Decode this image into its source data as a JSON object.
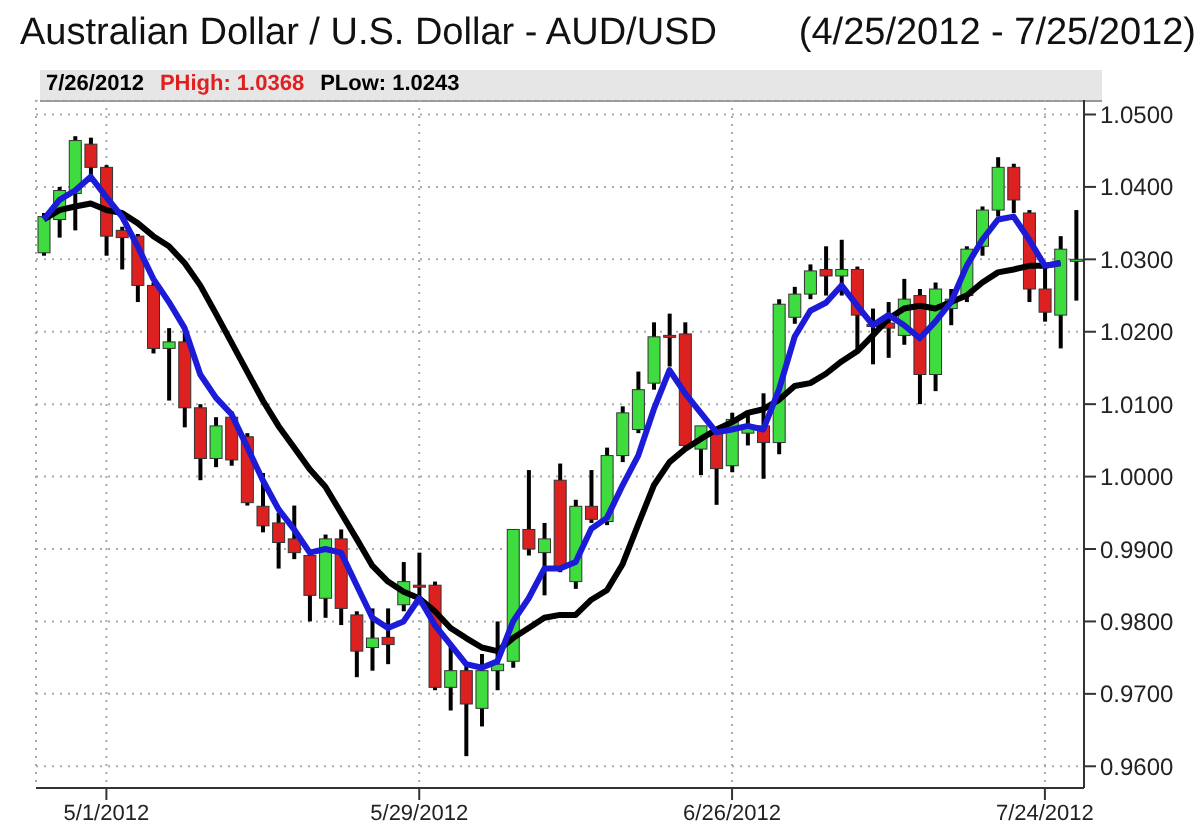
{
  "chart_data": {
    "type": "candlestick",
    "title": "Australian Dollar / U.S. Dollar -  AUD/USD",
    "subtitle": "(4/25/2012 - 7/25/2012)",
    "annotations": [
      "7/26/2012",
      "PHigh: 1.0368",
      "PLow: 1.0243"
    ],
    "categories": [
      null,
      null,
      null,
      null,
      "5/1/2012",
      null,
      null,
      null,
      null,
      null,
      null,
      null,
      null,
      null,
      null,
      null,
      null,
      null,
      null,
      null,
      null,
      null,
      null,
      null,
      "5/29/2012",
      null,
      null,
      null,
      null,
      null,
      null,
      null,
      null,
      null,
      null,
      null,
      null,
      null,
      null,
      null,
      null,
      null,
      null,
      null,
      "6/26/2012",
      null,
      null,
      null,
      null,
      null,
      null,
      null,
      null,
      null,
      null,
      null,
      null,
      null,
      null,
      null,
      null,
      null,
      null,
      null,
      "7/24/2012",
      null,
      null
    ],
    "ohlc": [
      [
        1.0309,
        1.0364,
        1.0305,
        1.0359
      ],
      [
        1.0355,
        1.04,
        1.033,
        1.0395
      ],
      [
        1.0391,
        1.047,
        1.034,
        1.0464
      ],
      [
        1.0459,
        1.0468,
        1.041,
        1.0427
      ],
      [
        1.0427,
        1.043,
        1.0305,
        1.0332
      ],
      [
        1.034,
        1.0345,
        1.0286,
        1.033
      ],
      [
        1.0332,
        1.0335,
        1.0241,
        1.0264
      ],
      [
        1.0264,
        1.0268,
        1.017,
        1.0177
      ],
      [
        1.0177,
        1.0205,
        1.0105,
        1.0186
      ],
      [
        1.0186,
        1.0205,
        1.0068,
        1.0095
      ],
      [
        1.0095,
        1.01,
        0.9995,
        1.0025
      ],
      [
        1.0025,
        1.0082,
        1.0013,
        1.007
      ],
      [
        1.0082,
        1.009,
        1.0015,
        1.0023
      ],
      [
        1.0055,
        1.006,
        0.996,
        0.9964
      ],
      [
        0.9959,
        1.0005,
        0.9923,
        0.9932
      ],
      [
        0.9936,
        0.995,
        0.9873,
        0.9909
      ],
      [
        0.9914,
        0.996,
        0.9886,
        0.9895
      ],
      [
        0.9891,
        0.9895,
        0.98,
        0.9836
      ],
      [
        0.9832,
        0.992,
        0.9805,
        0.9914
      ],
      [
        0.9914,
        0.9927,
        0.9795,
        0.9818
      ],
      [
        0.9809,
        0.9814,
        0.9723,
        0.9759
      ],
      [
        0.9764,
        0.9818,
        0.9732,
        0.9777
      ],
      [
        0.9778,
        0.9818,
        0.9741,
        0.9768
      ],
      [
        0.9823,
        0.9882,
        0.9814,
        0.9855
      ],
      [
        0.985,
        0.9895,
        0.9832,
        0.9848
      ],
      [
        0.985,
        0.9855,
        0.9705,
        0.9709
      ],
      [
        0.9709,
        0.9768,
        0.9677,
        0.9732
      ],
      [
        0.9732,
        0.9741,
        0.9614,
        0.9686
      ],
      [
        0.968,
        0.9755,
        0.9655,
        0.9732
      ],
      [
        0.9732,
        0.98,
        0.9705,
        0.9741
      ],
      [
        0.9745,
        0.9927,
        0.9736,
        0.9927
      ],
      [
        0.9927,
        1.0009,
        0.9891,
        0.99
      ],
      [
        0.9895,
        0.9936,
        0.9836,
        0.9914
      ],
      [
        0.9995,
        1.0018,
        0.9868,
        0.9873
      ],
      [
        0.9855,
        0.9968,
        0.9845,
        0.9959
      ],
      [
        0.9959,
        1.0009,
        0.9936,
        0.9941
      ],
      [
        0.9938,
        1.004,
        0.9933,
        1.0029
      ],
      [
        1.0029,
        1.0097,
        1.002,
        1.0088
      ],
      [
        1.0065,
        1.0145,
        1.006,
        1.012
      ],
      [
        1.0129,
        1.0213,
        1.012,
        1.0193
      ],
      [
        1.0195,
        1.0225,
        1.0152,
        1.0193
      ],
      [
        1.0197,
        1.0213,
        1.004,
        1.0043
      ],
      [
        1.0038,
        1.007,
        1.0002,
        1.007
      ],
      [
        1.0061,
        1.0061,
        0.9961,
        1.0011
      ],
      [
        1.0015,
        1.0088,
        1.0006,
        1.0079
      ],
      [
        1.006,
        1.0088,
        1.0043,
        1.007
      ],
      [
        1.007,
        1.0115,
        0.9997,
        1.0047
      ],
      [
        1.0047,
        1.0245,
        1.0031,
        1.0238
      ],
      [
        1.022,
        1.0262,
        1.0211,
        1.0252
      ],
      [
        1.0252,
        1.0293,
        1.0245,
        1.0284
      ],
      [
        1.0286,
        1.0318,
        1.025,
        1.0277
      ],
      [
        1.0277,
        1.0327,
        1.025,
        1.0286
      ],
      [
        1.0286,
        1.029,
        1.0175,
        1.0223
      ],
      [
        1.021,
        1.0232,
        1.0155,
        1.0208
      ],
      [
        1.0212,
        1.0241,
        1.0164,
        1.0205
      ],
      [
        1.0195,
        1.0273,
        1.0182,
        1.0245
      ],
      [
        1.025,
        1.0259,
        1.01,
        1.0141
      ],
      [
        1.0141,
        1.0268,
        1.0118,
        1.0259
      ],
      [
        1.0232,
        1.0259,
        1.0209,
        1.0245
      ],
      [
        1.025,
        1.0318,
        1.0241,
        1.0314
      ],
      [
        1.0318,
        1.0373,
        1.0305,
        1.0368
      ],
      [
        1.0368,
        1.0441,
        1.0359,
        1.0427
      ],
      [
        1.0427,
        1.0432,
        1.0364,
        1.0382
      ],
      [
        1.0364,
        1.0368,
        1.0241,
        1.0259
      ],
      [
        1.0259,
        1.0291,
        1.0214,
        1.0227
      ],
      [
        1.0223,
        1.0332,
        1.0177,
        1.0314
      ],
      [
        1.03,
        1.0368,
        1.0243,
        1.03
      ]
    ],
    "colors": [
      "#3fdc3f",
      "#3fdc3f",
      "#3fdc3f",
      "#dd2020",
      "#dd2020",
      "#dd2020",
      "#dd2020",
      "#dd2020",
      "#3fdc3f",
      "#dd2020",
      "#dd2020",
      "#3fdc3f",
      "#dd2020",
      "#dd2020",
      "#dd2020",
      "#dd2020",
      "#dd2020",
      "#dd2020",
      "#3fdc3f",
      "#dd2020",
      "#dd2020",
      "#3fdc3f",
      "#dd2020",
      "#3fdc3f",
      "#dd2020",
      "#dd2020",
      "#3fdc3f",
      "#dd2020",
      "#3fdc3f",
      "#3fdc3f",
      "#3fdc3f",
      "#dd2020",
      "#3fdc3f",
      "#dd2020",
      "#3fdc3f",
      "#dd2020",
      "#3fdc3f",
      "#3fdc3f",
      "#3fdc3f",
      "#3fdc3f",
      "#dd2020",
      "#dd2020",
      "#3fdc3f",
      "#dd2020",
      "#3fdc3f",
      "#3fdc3f",
      "#dd2020",
      "#3fdc3f",
      "#3fdc3f",
      "#3fdc3f",
      "#dd2020",
      "#3fdc3f",
      "#dd2020",
      "#dd2020",
      "#dd2020",
      "#3fdc3f",
      "#dd2020",
      "#3fdc3f",
      "#3fdc3f",
      "#3fdc3f",
      "#3fdc3f",
      "#3fdc3f",
      "#dd2020",
      "#dd2020",
      "#dd2020",
      "#3fdc3f",
      "#3fdc3f"
    ],
    "series": [
      {
        "type": "line",
        "color": "#000000",
        "values": [
          1.0355,
          1.0368,
          1.0373,
          1.0377,
          1.0368,
          1.0364,
          1.035,
          1.0332,
          1.0318,
          1.0295,
          1.0264,
          1.0225,
          1.0185,
          1.0145,
          1.0105,
          1.007,
          1.004,
          1.001,
          0.9986,
          0.995,
          0.9914,
          0.9877,
          0.9855,
          0.9841,
          0.9832,
          0.9814,
          0.9791,
          0.9777,
          0.9764,
          0.9759,
          0.9777,
          0.9791,
          0.9805,
          0.9809,
          0.9809,
          0.983,
          0.9843,
          0.9879,
          0.9934,
          0.9988,
          1.002,
          1.0038,
          1.0052,
          1.0065,
          1.0075,
          1.0088,
          1.0093,
          1.0106,
          1.0125,
          1.0129,
          1.0142,
          1.0159,
          1.0173,
          1.0195,
          1.0218,
          1.0232,
          1.0236,
          1.0232,
          1.0241,
          1.025,
          1.0268,
          1.0282,
          1.0286,
          1.0291,
          1.0291,
          1.0295,
          null
        ]
      },
      {
        "type": "line",
        "color": "#1c1cd8",
        "values": [
          1.0355,
          1.0382,
          1.0395,
          1.0414,
          1.0386,
          1.0359,
          1.0318,
          1.0273,
          1.0241,
          1.0205,
          1.0141,
          1.0109,
          1.0086,
          1.0041,
          0.9995,
          0.9955,
          0.9927,
          0.9895,
          0.99,
          0.9895,
          0.985,
          0.9805,
          0.9791,
          0.98,
          0.9832,
          0.9795,
          0.9768,
          0.9741,
          0.9736,
          0.9745,
          0.98,
          0.9832,
          0.9873,
          0.9873,
          0.9882,
          0.9928,
          0.9943,
          0.9988,
          1.0029,
          1.0093,
          1.0147,
          1.0115,
          1.0088,
          1.0061,
          1.0065,
          1.007,
          1.0065,
          1.012,
          1.0193,
          1.0229,
          1.024,
          1.0264,
          1.0236,
          1.0209,
          1.0223,
          1.0209,
          1.0191,
          1.0214,
          1.0241,
          1.0291,
          1.0327,
          1.0355,
          1.0359,
          1.0327,
          1.0291,
          1.0295,
          null
        ]
      }
    ],
    "ylim": [
      0.957,
      1.052
    ],
    "yticks": [
      {
        "value": 0.96,
        "label": "0.9600"
      },
      {
        "value": 0.97,
        "label": "0.9700"
      },
      {
        "value": 0.98,
        "label": "0.9800"
      },
      {
        "value": 0.99,
        "label": "0.9900"
      },
      {
        "value": 1.0,
        "label": "1.0000"
      },
      {
        "value": 1.01,
        "label": "1.0100"
      },
      {
        "value": 1.02,
        "label": "1.0200"
      },
      {
        "value": 1.03,
        "label": "1.0300"
      },
      {
        "value": 1.04,
        "label": "1.0400"
      },
      {
        "value": 1.05,
        "label": "1.0500"
      }
    ],
    "grid": true
  }
}
